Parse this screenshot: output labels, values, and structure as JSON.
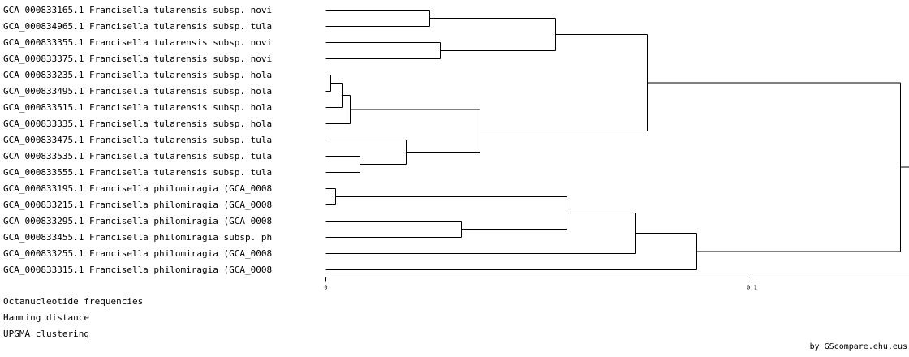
{
  "tree": {
    "leaves": [
      "GCA_000833165.1 Francisella tularensis subsp. novi",
      "GCA_000834965.1 Francisella tularensis subsp. tula",
      "GCA_000833355.1 Francisella tularensis subsp. novi",
      "GCA_000833375.1 Francisella tularensis subsp. novi",
      "GCA_000833235.1 Francisella tularensis subsp. hola",
      "GCA_000833495.1 Francisella tularensis subsp. hola",
      "GCA_000833515.1 Francisella tularensis subsp. hola",
      "GCA_000833335.1 Francisella tularensis subsp. hola",
      "GCA_000833475.1 Francisella tularensis subsp. tula",
      "GCA_000833535.1 Francisella tularensis subsp. tula",
      "GCA_000833555.1 Francisella tularensis subsp. tula",
      "GCA_000833195.1 Francisella philomiragia (GCA_0008",
      "GCA_000833215.1 Francisella philomiragia (GCA_0008",
      "GCA_000833295.1 Francisella philomiragia (GCA_0008",
      "GCA_000833455.1 Francisella philomiragia subsp. ph",
      "GCA_000833255.1 Francisella philomiragia (GCA_0008",
      "GCA_000833315.1 Francisella philomiragia (GCA_0008"
    ],
    "merges": [
      {
        "id": "c1",
        "children": [
          "L0",
          "L1"
        ],
        "height": 0.0244
      },
      {
        "id": "c2",
        "children": [
          "L2",
          "L3"
        ],
        "height": 0.027
      },
      {
        "id": "c3",
        "children": [
          "c1",
          "c2"
        ],
        "height": 0.054
      },
      {
        "id": "c4",
        "children": [
          "L4",
          "L5"
        ],
        "height": 0.0012
      },
      {
        "id": "c5",
        "children": [
          "c4",
          "L6"
        ],
        "height": 0.004
      },
      {
        "id": "c6",
        "children": [
          "c5",
          "L7"
        ],
        "height": 0.0058
      },
      {
        "id": "c7",
        "children": [
          "L9",
          "L10"
        ],
        "height": 0.008
      },
      {
        "id": "c8",
        "children": [
          "L8",
          "c7"
        ],
        "height": 0.019
      },
      {
        "id": "c9",
        "children": [
          "c6",
          "c8"
        ],
        "height": 0.0362
      },
      {
        "id": "c10",
        "children": [
          "c3",
          "c9"
        ],
        "height": 0.0756
      },
      {
        "id": "c11",
        "children": [
          "L11",
          "L12"
        ],
        "height": 0.0023
      },
      {
        "id": "c12",
        "children": [
          "L13",
          "L14"
        ],
        "height": 0.0319
      },
      {
        "id": "c13",
        "children": [
          "c11",
          "c12"
        ],
        "height": 0.0566
      },
      {
        "id": "c14",
        "children": [
          "c13",
          "L15"
        ],
        "height": 0.0729
      },
      {
        "id": "c15",
        "children": [
          "c14",
          "L16"
        ],
        "height": 0.0871
      },
      {
        "id": "c16",
        "children": [
          "c10",
          "c15"
        ],
        "height": 0.135
      }
    ]
  },
  "axis": {
    "range": [
      0,
      0.135
    ],
    "ticks": [
      {
        "value": 0,
        "label": "0"
      },
      {
        "value": 0.1,
        "label": "0.1"
      }
    ]
  },
  "method": {
    "features": "Octanucleotide frequencies",
    "distance": "Hamming distance",
    "clustering": "UPGMA clustering"
  },
  "credit": "by GScompare.ehu.eus"
}
